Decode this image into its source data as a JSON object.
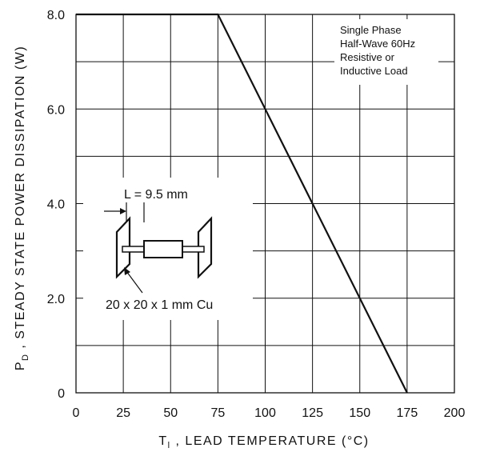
{
  "chart_data": {
    "type": "line",
    "title": "",
    "xlabel": "T",
    "xlabel_sub": "l",
    "xlabel_rest": " , LEAD TEMPERATURE (°C)",
    "ylabel": "P",
    "ylabel_sub": "D",
    "ylabel_rest": " , STEADY STATE POWER DISSIPATION (W)",
    "xlim": [
      0,
      200
    ],
    "ylim": [
      0,
      8
    ],
    "grid": true,
    "x_major_ticks": [
      0,
      25,
      50,
      75,
      100,
      125,
      150,
      175,
      200
    ],
    "x_tick_labels": [
      "0",
      "25",
      "50",
      "75",
      "100",
      "125",
      "150",
      "175",
      "200"
    ],
    "y_grid_lines": [
      0,
      1,
      2,
      3,
      4,
      5,
      6,
      7,
      8
    ],
    "y_major_ticks": [
      0,
      2,
      4,
      6,
      8
    ],
    "y_tick_labels": [
      "0",
      "2.0",
      "4.0",
      "6.0",
      "8.0"
    ],
    "series": [
      {
        "x": [
          0,
          75,
          175
        ],
        "y": [
          8.0,
          8.0,
          0
        ]
      }
    ],
    "annotations": {
      "condition_lines": [
        "Single Phase",
        "Half-Wave 60Hz",
        "Resistive or",
        "Inductive Load"
      ],
      "lead_length": "L = 9.5 mm",
      "pad_size": "20 x 20 x 1 mm Cu"
    }
  }
}
